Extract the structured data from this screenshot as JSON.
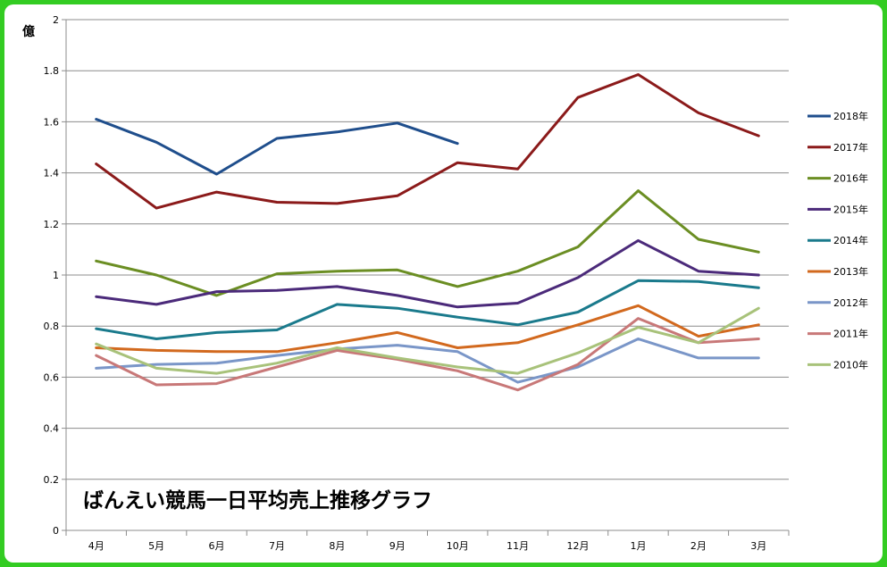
{
  "chart_data": {
    "type": "line",
    "title": "ばんえい競馬一日平均売上推移グラフ",
    "ylabel": "億",
    "xlabel": "",
    "ylim": [
      0,
      2
    ],
    "yticks": [
      "0",
      "0.2",
      "0.4",
      "0.6",
      "0.8",
      "1",
      "1.2",
      "1.4",
      "1.6",
      "1.8",
      "2"
    ],
    "categories": [
      "4月",
      "5月",
      "6月",
      "7月",
      "8月",
      "9月",
      "10月",
      "11月",
      "12月",
      "1月",
      "2月",
      "3月"
    ],
    "grid": true,
    "legend_position": "right",
    "series": [
      {
        "name": "2018年",
        "color": "#1f4e8c",
        "values": [
          1.61,
          1.52,
          1.395,
          1.535,
          1.56,
          1.595,
          1.515,
          null,
          null,
          null,
          null,
          null
        ]
      },
      {
        "name": "2017年",
        "color": "#8b1a1a",
        "values": [
          1.435,
          1.262,
          1.325,
          1.285,
          1.28,
          1.31,
          1.44,
          1.415,
          1.695,
          1.785,
          1.635,
          1.545
        ]
      },
      {
        "name": "2016年",
        "color": "#6b8e23",
        "values": [
          1.055,
          1.0,
          0.92,
          1.005,
          1.015,
          1.02,
          0.955,
          1.015,
          1.11,
          1.33,
          1.14,
          1.09
        ]
      },
      {
        "name": "2015年",
        "color": "#4b2a7a",
        "values": [
          0.915,
          0.885,
          0.935,
          0.94,
          0.955,
          0.92,
          0.875,
          0.89,
          0.99,
          1.135,
          1.015,
          1.0
        ]
      },
      {
        "name": "2014年",
        "color": "#1a7a8c",
        "values": [
          0.79,
          0.75,
          0.775,
          0.785,
          0.885,
          0.87,
          0.835,
          0.805,
          0.855,
          0.978,
          0.975,
          0.95
        ]
      },
      {
        "name": "2013年",
        "color": "#d2691e",
        "values": [
          0.715,
          0.705,
          0.7,
          0.7,
          0.735,
          0.775,
          0.715,
          0.735,
          0.805,
          0.88,
          0.76,
          0.805
        ]
      },
      {
        "name": "2012年",
        "color": "#7a96c8",
        "values": [
          0.635,
          0.65,
          0.655,
          0.685,
          0.71,
          0.725,
          0.7,
          0.58,
          0.64,
          0.75,
          0.675,
          0.675
        ]
      },
      {
        "name": "2011年",
        "color": "#c87878",
        "values": [
          0.685,
          0.57,
          0.575,
          0.64,
          0.705,
          0.67,
          0.625,
          0.55,
          0.65,
          0.83,
          0.735,
          0.75
        ]
      },
      {
        "name": "2010年",
        "color": "#a8c27a",
        "values": [
          0.73,
          0.635,
          0.615,
          0.655,
          0.715,
          0.675,
          0.64,
          0.615,
          0.695,
          0.795,
          0.735,
          0.87
        ]
      }
    ]
  }
}
